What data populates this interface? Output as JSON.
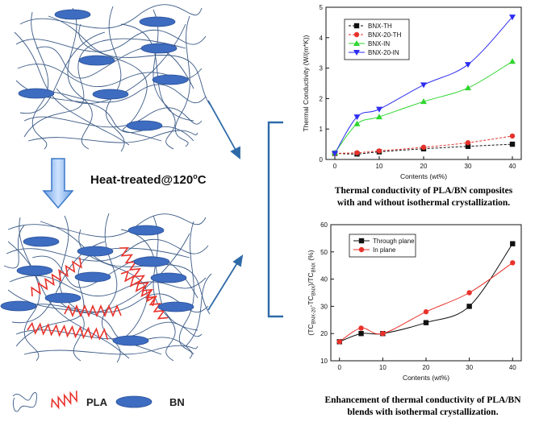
{
  "labels": {
    "heat_treated": "Heat-treated@120",
    "heat_treated_sup": "o",
    "heat_treated_unit": "C",
    "legend_pla": "PLA",
    "legend_bn": "BN"
  },
  "captions": {
    "top_line1": "Thermal conductivity of PLA/BN composites",
    "top_line2": "with and without isothermal crystallization.",
    "bottom_line1": "Enhancement of thermal conductivity of PLA/BN",
    "bottom_line2": "blends with isothermal crystallization."
  },
  "colors": {
    "arrow_blue": "#2e6aa8",
    "bn_fill": "#3d6cc0",
    "pla_red": "#e8322b",
    "polymer_line": "#3b5a86"
  },
  "chart_data": [
    {
      "type": "line",
      "xlabel": "Contents (wt%)",
      "ylabel": "Thermal Conductivity (W/(m*K))",
      "xlim": [
        -2,
        42
      ],
      "ylim": [
        0,
        5
      ],
      "xticks": [
        "0",
        "10",
        "20",
        "30",
        "40"
      ],
      "yticks": [
        "0",
        "1",
        "2",
        "3",
        "4",
        "5"
      ],
      "legend_position": "top-left",
      "series": [
        {
          "name": "BNX-TH",
          "color": "#111111",
          "marker": "square",
          "dashed": true,
          "x": [
            0,
            5,
            10,
            20,
            30,
            40
          ],
          "y": [
            0.2,
            0.18,
            0.25,
            0.35,
            0.43,
            0.5
          ]
        },
        {
          "name": "BNX-20-TH",
          "color": "#e8322b",
          "marker": "circle",
          "dashed": true,
          "x": [
            0,
            5,
            10,
            20,
            30,
            40
          ],
          "y": [
            0.2,
            0.22,
            0.28,
            0.4,
            0.55,
            0.77
          ]
        },
        {
          "name": "BNX-IN",
          "color": "#2fd62f",
          "marker": "triangle-up",
          "dashed": false,
          "x": [
            0,
            5,
            10,
            20,
            30,
            40
          ],
          "y": [
            0.22,
            1.17,
            1.4,
            1.9,
            2.35,
            3.22
          ]
        },
        {
          "name": "BNX-20-IN",
          "color": "#2d2df0",
          "marker": "triangle-down",
          "dashed": false,
          "x": [
            0,
            5,
            10,
            20,
            30,
            40
          ],
          "y": [
            0.2,
            1.4,
            1.65,
            2.45,
            3.12,
            4.68
          ]
        }
      ]
    },
    {
      "type": "line",
      "xlabel": "Contents (wt%)",
      "ylabel": "(TC_BNX-20 - TC_BNX)/TC_BNX (%)",
      "ylabel_parts": {
        "open": "(TC",
        "sub1": "BNX-20",
        "mid": "-TC",
        "sub2": "BNX",
        "close": ")/TC",
        "sub3": "BNX",
        "unit": " (%)"
      },
      "xlim": [
        -2,
        42
      ],
      "ylim": [
        10,
        60
      ],
      "xticks": [
        "0",
        "10",
        "20",
        "30",
        "40"
      ],
      "yticks": [
        "10",
        "20",
        "30",
        "40",
        "50",
        "60"
      ],
      "legend_position": "top-left",
      "series": [
        {
          "name": "Through plane",
          "color": "#111111",
          "marker": "square",
          "x": [
            0,
            5,
            10,
            20,
            30,
            40
          ],
          "y": [
            17,
            20,
            20,
            24,
            30,
            53
          ]
        },
        {
          "name": "In plane",
          "color": "#e8322b",
          "marker": "circle",
          "x": [
            0,
            5,
            10,
            20,
            30,
            40
          ],
          "y": [
            17,
            22,
            20,
            28,
            35,
            46
          ]
        }
      ]
    }
  ]
}
